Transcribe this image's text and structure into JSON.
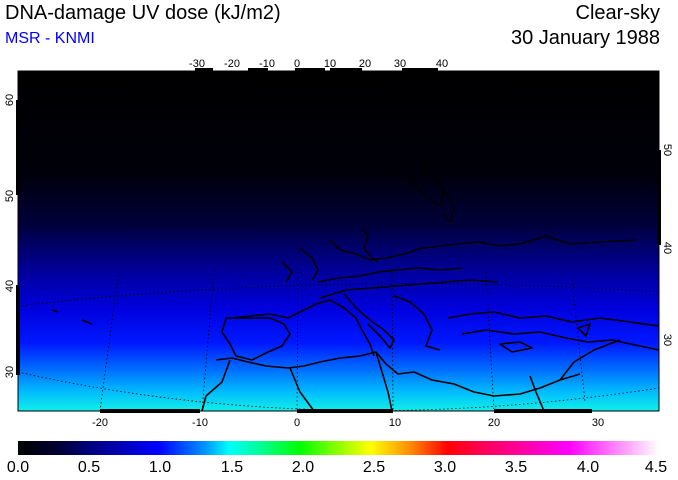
{
  "header": {
    "title": "DNA-damage UV dose (kJ/m2)",
    "source": "MSR - KNMI",
    "sky": "Clear-sky",
    "date": "30 January 1988"
  },
  "map": {
    "top_lon_labels": [
      "-30",
      "-20",
      "-10",
      "0",
      "10",
      "20",
      "30",
      "40"
    ],
    "bottom_lon_labels": [
      "-20",
      "-10",
      "0",
      "10",
      "20",
      "30"
    ],
    "left_lat_labels": [
      "60",
      "50",
      "40",
      "30"
    ],
    "right_lat_labels": [
      "50",
      "40",
      "30"
    ],
    "colors": {
      "land_border": "#000000",
      "graticule": "#000000"
    }
  },
  "colorbar": {
    "labels": [
      "0.0",
      "0.5",
      "1.0",
      "1.5",
      "2.0",
      "2.5",
      "3.0",
      "3.5",
      "4.0",
      "4.5"
    ]
  }
}
